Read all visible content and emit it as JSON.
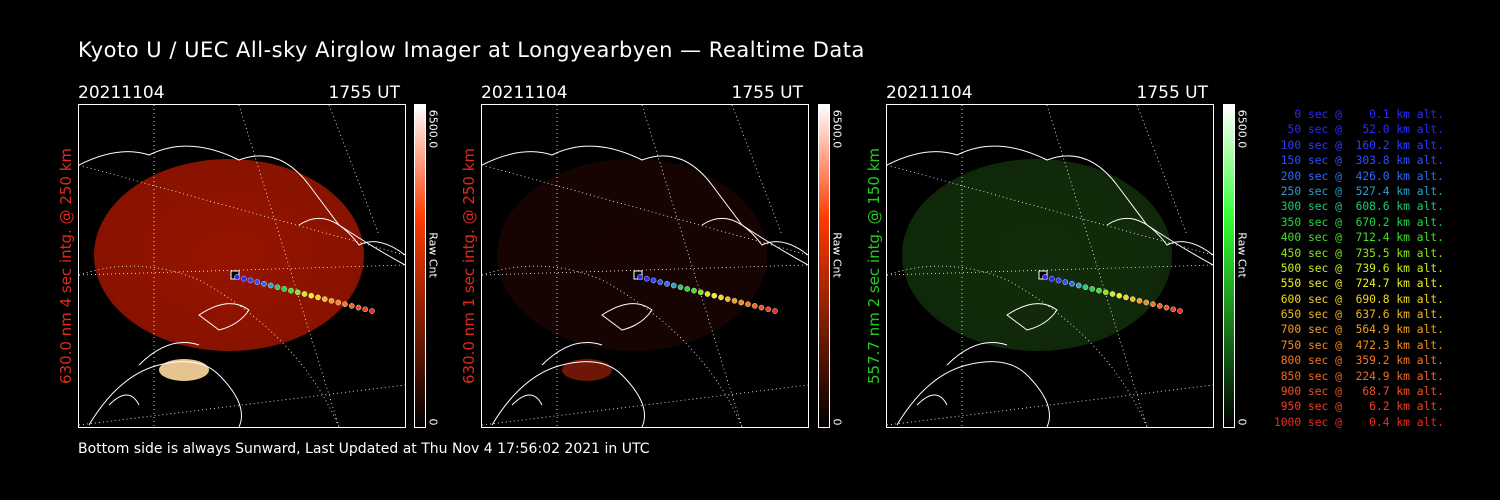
{
  "title": "Kyoto U / UEC All-sky Airglow Imager at Longyearbyen — Realtime Data",
  "panels": [
    {
      "date": "20211104",
      "time": "1755 UT",
      "side_label": "630.0 nm  4 sec intg. @ 250 km",
      "label_color": "#e02a1a",
      "colorbar": {
        "max": "6500.0",
        "min": "0",
        "unit": "Raw Cnt",
        "top_color": "#ffffff",
        "bottom_color": "#000000",
        "mid_color": "#ff3a00"
      },
      "image_tint": "#b01800",
      "image_brightness": 0.85
    },
    {
      "date": "20211104",
      "time": "1755 UT",
      "side_label": "630.0 nm  1 sec intg. @ 250 km",
      "label_color": "#e02a1a",
      "colorbar": {
        "max": "6500.0",
        "min": "0",
        "unit": "Raw Cnt",
        "top_color": "#ffffff",
        "bottom_color": "#000000",
        "mid_color": "#ff3a00"
      },
      "image_tint": "#3a0a04",
      "image_brightness": 0.4
    },
    {
      "date": "20211104",
      "time": "1755 UT",
      "side_label": "557.7 nm  2 sec intg. @ 150 km",
      "label_color": "#22cc22",
      "colorbar": {
        "max": "6500.0",
        "min": "0",
        "unit": "Raw Cnt",
        "top_color": "#ffffff",
        "bottom_color": "#000000",
        "mid_color": "#33ff33"
      },
      "image_tint": "#1d4a12",
      "image_brightness": 0.6
    }
  ],
  "legend": [
    {
      "text": "   0 sec @    0.1 km alt.",
      "color": "#2a2aff"
    },
    {
      "text": "  50 sec @   52.0 km alt.",
      "color": "#2a2aff"
    },
    {
      "text": " 100 sec @  160.2 km alt.",
      "color": "#2a3cff"
    },
    {
      "text": " 150 sec @  303.8 km alt.",
      "color": "#2a50ff"
    },
    {
      "text": " 200 sec @  426.0 km alt.",
      "color": "#2a6cff"
    },
    {
      "text": " 250 sec @  527.4 km alt.",
      "color": "#2aa0c8"
    },
    {
      "text": " 300 sec @  608.6 km alt.",
      "color": "#22c878"
    },
    {
      "text": " 350 sec @  670.2 km alt.",
      "color": "#22d840"
    },
    {
      "text": " 400 sec @  712.4 km alt.",
      "color": "#44e020"
    },
    {
      "text": " 450 sec @  735.5 km alt.",
      "color": "#88e820"
    },
    {
      "text": " 500 sec @  739.6 km alt.",
      "color": "#c8f020"
    },
    {
      "text": " 550 sec @  724.7 km alt.",
      "color": "#f0f020"
    },
    {
      "text": " 600 sec @  690.8 km alt.",
      "color": "#f0d820"
    },
    {
      "text": " 650 sec @  637.6 km alt.",
      "color": "#f0b820"
    },
    {
      "text": " 700 sec @  564.9 km alt.",
      "color": "#f0a020"
    },
    {
      "text": " 750 sec @  472.3 km alt.",
      "color": "#f08c20"
    },
    {
      "text": " 800 sec @  359.2 km alt.",
      "color": "#f07820"
    },
    {
      "text": " 850 sec @  224.9 km alt.",
      "color": "#f06820"
    },
    {
      "text": " 900 sec @   68.7 km alt.",
      "color": "#f05020"
    },
    {
      "text": " 950 sec @    6.2 km alt.",
      "color": "#f04020"
    },
    {
      "text": "1000 sec @    0.4 km alt.",
      "color": "#f02a20"
    }
  ],
  "footer": "Bottom side is always Sunward, Last Updated at Thu Nov  4 17:56:02 2021 in UTC"
}
